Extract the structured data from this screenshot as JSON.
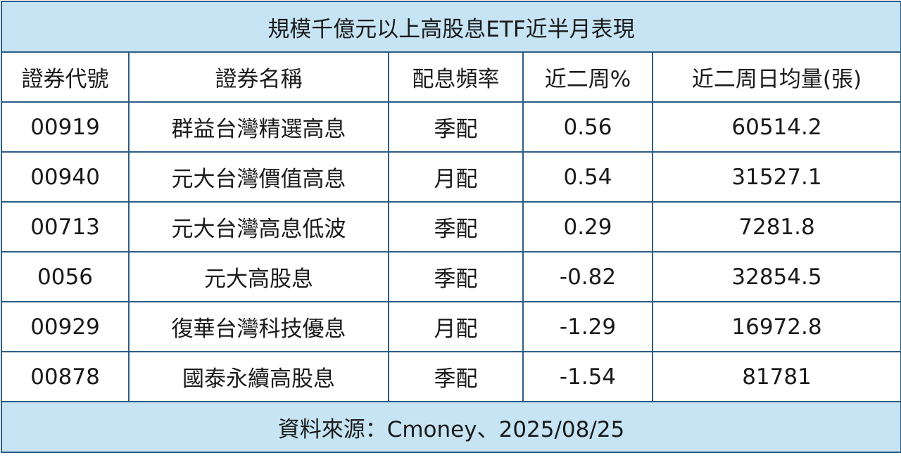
{
  "table": {
    "title": "規模千億元以上高股息ETF近半月表現",
    "columns": [
      "證券代號",
      "證券名稱",
      "配息頻率",
      "近二周%",
      "近二周日均量(張)"
    ],
    "rows": [
      [
        "00919",
        "群益台灣精選高息",
        "季配",
        "0.56",
        "60514.2"
      ],
      [
        "00940",
        "元大台灣價值高息",
        "月配",
        "0.54",
        "31527.1"
      ],
      [
        "00713",
        "元大台灣高息低波",
        "季配",
        "0.29",
        "7281.8"
      ],
      [
        "0056",
        "元大高股息",
        "季配",
        "-0.82",
        "32854.5"
      ],
      [
        "00929",
        "復華台灣科技優息",
        "月配",
        "-1.29",
        "16972.8"
      ],
      [
        "00878",
        "國泰永續高股息",
        "季配",
        "-1.54",
        "81781"
      ]
    ],
    "source": "資料來源：Cmoney、2025/08/25"
  }
}
